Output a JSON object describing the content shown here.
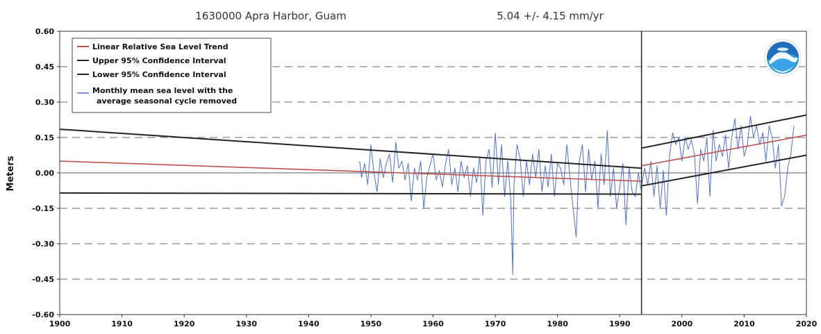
{
  "chart_data": {
    "type": "line",
    "title_left": "1630000 Apra Harbor, Guam",
    "title_right": "5.04 +/-  4.15 mm/yr",
    "ylabel": "Meters",
    "xlabel": "",
    "xlim": [
      1900,
      2020
    ],
    "ylim": [
      -0.6,
      0.6
    ],
    "x_ticks": [
      "1900",
      "1910",
      "1920",
      "1930",
      "1940",
      "1950",
      "1960",
      "1970",
      "1980",
      "1990",
      "2000",
      "2010",
      "2020"
    ],
    "y_ticks": [
      "0.60",
      "0.45",
      "0.30",
      "0.15",
      "0.00",
      "-0.15",
      "-0.30",
      "-0.45",
      "-0.60"
    ],
    "grid": "horizontal dashed",
    "legend_position": "top-left",
    "vertical_marker_x": 1993.5,
    "legend": [
      {
        "label": "Linear Relative Sea Level Trend",
        "color": "#c0504d"
      },
      {
        "label": "Upper 95% Confidence Interval",
        "color": "#222222"
      },
      {
        "label": "Lower 95% Confidence Interval",
        "color": "#222222"
      },
      {
        "label": "Monthly mean sea level with the",
        "label2": "average seasonal cycle removed",
        "color": "#4a6fd6"
      }
    ],
    "series": [
      {
        "name": "Linear Relative Sea Level Trend",
        "color": "#c0504d",
        "segments": [
          {
            "x": [
              1900,
              1993.5
            ],
            "y": [
              0.05,
              -0.035
            ]
          },
          {
            "x": [
              1993.5,
              2020
            ],
            "y": [
              0.03,
              0.16
            ]
          }
        ]
      },
      {
        "name": "Upper 95% Confidence Interval",
        "color": "#222222",
        "segments": [
          {
            "x": [
              1900,
              1993.5
            ],
            "y": [
              0.185,
              0.02
            ]
          },
          {
            "x": [
              1993.5,
              2020
            ],
            "y": [
              0.105,
              0.245
            ]
          }
        ]
      },
      {
        "name": "Lower 95% Confidence Interval",
        "color": "#222222",
        "segments": [
          {
            "x": [
              1900,
              1993.5
            ],
            "y": [
              -0.085,
              -0.09
            ]
          },
          {
            "x": [
              1993.5,
              2020
            ],
            "y": [
              -0.055,
              0.075
            ]
          }
        ]
      },
      {
        "name": "Monthly mean sea level with the average seasonal cycle removed",
        "color": "#4a6fd6",
        "x": [
          1948.2,
          1948.5,
          1949.0,
          1949.5,
          1950.0,
          1950.5,
          1951.0,
          1951.5,
          1952.0,
          1952.5,
          1953.0,
          1953.5,
          1954.0,
          1954.5,
          1955.0,
          1955.5,
          1956.0,
          1956.5,
          1957.0,
          1957.5,
          1958.0,
          1958.5,
          1959.0,
          1959.5,
          1960.0,
          1960.5,
          1961.0,
          1961.5,
          1962.0,
          1962.5,
          1963.0,
          1963.5,
          1964.0,
          1964.5,
          1965.0,
          1965.5,
          1966.0,
          1966.5,
          1967.0,
          1967.5,
          1968.0,
          1968.5,
          1969.0,
          1969.5,
          1970.0,
          1970.5,
          1971.0,
          1971.5,
          1972.0,
          1972.5,
          1972.8,
          1973.0,
          1973.5,
          1974.0,
          1974.5,
          1975.0,
          1975.5,
          1976.0,
          1976.5,
          1977.0,
          1977.5,
          1978.0,
          1978.5,
          1979.0,
          1979.5,
          1980.0,
          1980.5,
          1981.0,
          1981.5,
          1982.0,
          1982.5,
          1983.0,
          1983.5,
          1984.0,
          1984.5,
          1985.0,
          1985.5,
          1986.0,
          1986.5,
          1987.0,
          1987.5,
          1988.0,
          1988.5,
          1989.0,
          1989.5,
          1990.0,
          1990.5,
          1991.0,
          1991.5,
          1992.0,
          1992.5,
          1993.0,
          1993.4,
          1994.0,
          1994.5,
          1995.0,
          1995.5,
          1996.0,
          1996.5,
          1997.0,
          1997.5,
          1998.0,
          1998.5,
          1999.0,
          1999.5,
          2000.0,
          2000.5,
          2001.0,
          2001.5,
          2002.0,
          2002.5,
          2003.0,
          2003.5,
          2004.0,
          2004.5,
          2005.0,
          2005.5,
          2006.0,
          2006.5,
          2007.0,
          2007.5,
          2008.0,
          2008.5,
          2009.0,
          2009.5,
          2010.0,
          2010.5,
          2011.0,
          2011.5,
          2012.0,
          2012.5,
          2013.0,
          2013.5,
          2014.0,
          2014.5,
          2015.0,
          2015.5,
          2016.0,
          2016.5,
          2017.0,
          2017.5,
          2018.0
        ],
        "y": [
          0.05,
          -0.02,
          0.04,
          -0.05,
          0.12,
          0.0,
          -0.08,
          0.06,
          -0.02,
          0.04,
          0.08,
          -0.04,
          0.13,
          0.02,
          0.05,
          -0.03,
          0.04,
          -0.12,
          0.02,
          -0.03,
          0.05,
          -0.15,
          -0.02,
          0.03,
          0.08,
          -0.03,
          0.01,
          -0.06,
          0.04,
          0.1,
          -0.05,
          0.02,
          -0.08,
          0.05,
          -0.02,
          0.03,
          -0.1,
          0.02,
          -0.04,
          0.07,
          -0.18,
          0.05,
          0.1,
          -0.06,
          0.17,
          -0.05,
          0.12,
          -0.1,
          0.05,
          -0.12,
          -0.43,
          -0.05,
          0.12,
          0.06,
          -0.1,
          0.05,
          -0.05,
          0.08,
          -0.02,
          0.1,
          -0.08,
          0.03,
          -0.06,
          0.08,
          -0.1,
          0.04,
          0.02,
          -0.05,
          0.12,
          -0.02,
          -0.15,
          -0.27,
          0.05,
          0.12,
          -0.08,
          0.1,
          -0.03,
          0.05,
          -0.15,
          0.08,
          -0.05,
          0.18,
          -0.1,
          0.02,
          -0.15,
          -0.06,
          0.04,
          -0.22,
          0.02,
          -0.08,
          -0.1,
          0.0,
          -0.07,
          0.02,
          -0.05,
          0.05,
          -0.1,
          0.03,
          -0.15,
          0.01,
          -0.18,
          0.07,
          0.17,
          0.12,
          0.15,
          0.05,
          0.15,
          0.1,
          0.14,
          0.08,
          -0.13,
          0.1,
          0.05,
          0.15,
          -0.1,
          0.18,
          0.05,
          0.12,
          0.07,
          0.16,
          0.02,
          0.15,
          0.23,
          0.1,
          0.2,
          0.07,
          0.12,
          0.24,
          0.15,
          0.2,
          0.12,
          0.17,
          0.05,
          0.2,
          0.15,
          0.02,
          0.12,
          -0.14,
          -0.1,
          0.02,
          0.08,
          0.2
        ]
      }
    ]
  }
}
